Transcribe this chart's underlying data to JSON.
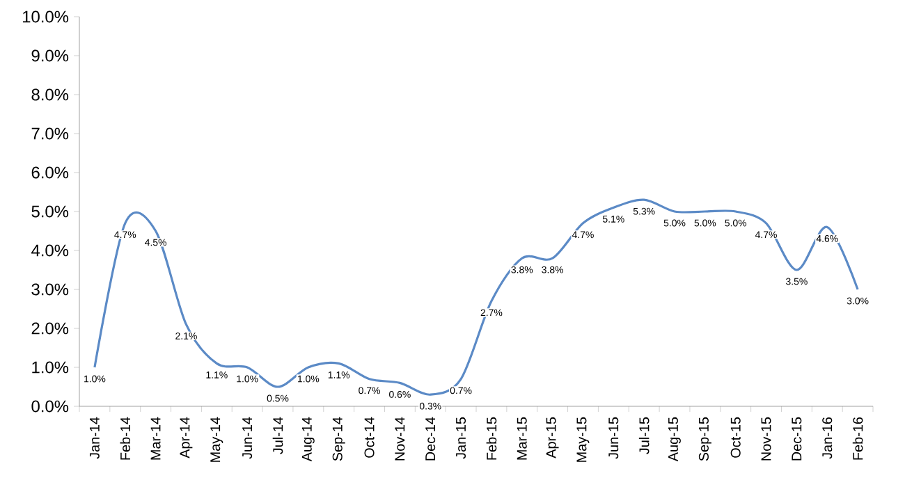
{
  "chart_data": {
    "type": "line",
    "categories": [
      "Jan-14",
      "Feb-14",
      "Mar-14",
      "Apr-14",
      "May-14",
      "Jun-14",
      "Jul-14",
      "Aug-14",
      "Sep-14",
      "Oct-14",
      "Nov-14",
      "Dec-14",
      "Jan-15",
      "Feb-15",
      "Mar-15",
      "Apr-15",
      "May-15",
      "Jun-15",
      "Jul-15",
      "Aug-15",
      "Sep-15",
      "Oct-15",
      "Nov-15",
      "Dec-15",
      "Jan-16",
      "Feb-16"
    ],
    "series": [
      {
        "color": "#5b8ac6",
        "values": [
          1.0,
          4.7,
          4.5,
          2.1,
          1.1,
          1.0,
          0.5,
          1.0,
          1.1,
          0.7,
          0.6,
          0.3,
          0.7,
          2.7,
          3.8,
          3.8,
          4.7,
          5.1,
          5.3,
          5.0,
          5.0,
          5.0,
          4.7,
          3.5,
          4.6,
          3.0
        ],
        "value_labels": [
          "1.0%",
          "4.7%",
          "4.5%",
          "2.1%",
          "1.1%",
          "1.0%",
          "0.5%",
          "1.0%",
          "1.1%",
          "0.7%",
          "0.6%",
          "0.3%",
          "0.7%",
          "2.7%",
          "3.8%",
          "3.8%",
          "4.7%",
          "5.1%",
          "5.3%",
          "5.0%",
          "5.0%",
          "5.0%",
          "4.7%",
          "3.5%",
          "4.6%",
          "3.0%"
        ]
      }
    ],
    "ylim": [
      0,
      10
    ],
    "yticks": [
      {
        "value": 0,
        "label": "0.0%"
      },
      {
        "value": 1,
        "label": "1.0%"
      },
      {
        "value": 2,
        "label": "2.0%"
      },
      {
        "value": 3,
        "label": "3.0%"
      },
      {
        "value": 4,
        "label": "4.0%"
      },
      {
        "value": 5,
        "label": "5.0%"
      },
      {
        "value": 6,
        "label": "6.0%"
      },
      {
        "value": 7,
        "label": "7.0%"
      },
      {
        "value": 8,
        "label": "8.0%"
      },
      {
        "value": 9,
        "label": "9.0%"
      },
      {
        "value": 10,
        "label": "10.0%"
      }
    ],
    "grid": false
  }
}
